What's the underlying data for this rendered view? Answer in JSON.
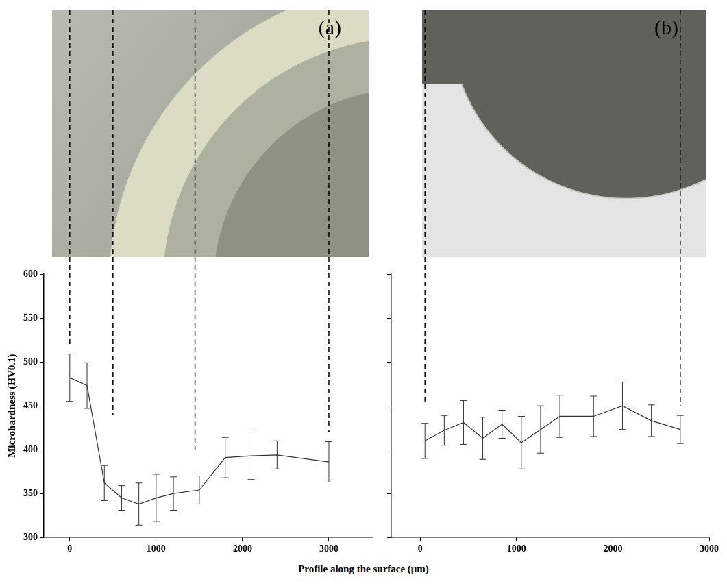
{
  "x_label": "Profile along the surface (μm)",
  "chart_data": [
    {
      "type": "line",
      "panel": "(a)",
      "y_label": "Microhardness (HV0.1)",
      "x": [
        0,
        200,
        400,
        600,
        800,
        1000,
        1200,
        1500,
        1800,
        2100,
        2400,
        3000
      ],
      "values": [
        482,
        473,
        362,
        345,
        338,
        345,
        350,
        354,
        391,
        393,
        394,
        386
      ],
      "errors": [
        27,
        26,
        20,
        14,
        24,
        27,
        19,
        16,
        23,
        27,
        16,
        23
      ],
      "color": "#333333",
      "xlim": [
        -300,
        3500
      ],
      "xticks": [
        0,
        1000,
        2000,
        3000
      ],
      "ylim": [
        300,
        600
      ],
      "yticks": [
        300,
        350,
        400,
        450,
        500,
        550,
        600
      ],
      "grid": false,
      "guide_lines": [
        {
          "x": 0,
          "y": 520
        },
        {
          "x": 500,
          "y": 440
        },
        {
          "x": 1450,
          "y": 400
        },
        {
          "x": 3000,
          "y": 420
        }
      ]
    },
    {
      "type": "line",
      "panel": "(b)",
      "x": [
        50,
        250,
        450,
        650,
        850,
        1050,
        1250,
        1450,
        1800,
        2100,
        2400,
        2700
      ],
      "values": [
        410,
        422,
        431,
        413,
        429,
        408,
        423,
        438,
        438,
        450,
        433,
        423
      ],
      "errors": [
        20,
        17,
        25,
        24,
        16,
        30,
        27,
        24,
        23,
        27,
        18,
        16
      ],
      "color": "#333333",
      "xlim": [
        -300,
        3000
      ],
      "xticks": [
        0,
        1000,
        2000,
        3000
      ],
      "ylim": [
        300,
        600
      ],
      "yticks": [
        300,
        350,
        400,
        450,
        500,
        550,
        600
      ],
      "grid": false,
      "tick_labels": "x",
      "guide_lines": [
        {
          "x": 50,
          "y": 455
        },
        {
          "x": 2700,
          "y": 450
        }
      ]
    }
  ]
}
